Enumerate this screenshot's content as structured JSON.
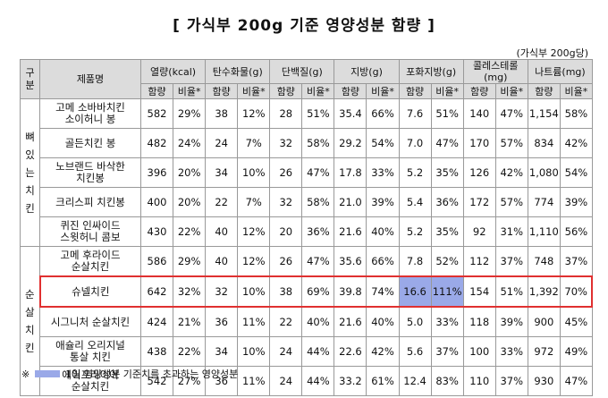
{
  "header": {
    "title": "[ 가식부 200g 기준 영양성분 함량 ]",
    "unit_note": "(가식부 200g당)"
  },
  "table": {
    "corner": "구분",
    "name_header": "제품명",
    "nutrients": [
      "열량(kcal)",
      "탄수화물(g)",
      "단백질(g)",
      "지방(g)",
      "포화지방(g)",
      "콜레스테롤(mg)",
      "나트륨(mg)"
    ],
    "sub_headers": [
      "함량",
      "비율*"
    ],
    "groups": [
      {
        "label": "뼈 있는 치킨",
        "rows": [
          {
            "name": [
              "고메 소바바치킨",
              "소이허니 봉"
            ],
            "cells": [
              "582",
              "29%",
              "38",
              "12%",
              "28",
              "51%",
              "35.4",
              "66%",
              "7.6",
              "51%",
              "140",
              "47%",
              "1,154",
              "58%"
            ]
          },
          {
            "name": [
              "골든치킨 봉"
            ],
            "cells": [
              "482",
              "24%",
              "24",
              "7%",
              "32",
              "58%",
              "29.2",
              "54%",
              "7.0",
              "47%",
              "170",
              "57%",
              "834",
              "42%"
            ]
          },
          {
            "name": [
              "노브랜드 바삭한",
              "치킨봉"
            ],
            "cells": [
              "396",
              "20%",
              "34",
              "10%",
              "26",
              "47%",
              "17.8",
              "33%",
              "5.2",
              "35%",
              "126",
              "42%",
              "1,080",
              "54%"
            ]
          },
          {
            "name": [
              "크리스피 치킨봉"
            ],
            "cells": [
              "400",
              "20%",
              "22",
              "7%",
              "32",
              "58%",
              "21.0",
              "39%",
              "5.4",
              "36%",
              "172",
              "57%",
              "774",
              "39%"
            ]
          },
          {
            "name": [
              "퀴진 인싸이드",
              "스윗허니 콤보"
            ],
            "cells": [
              "430",
              "22%",
              "40",
              "12%",
              "20",
              "36%",
              "21.6",
              "40%",
              "5.2",
              "35%",
              "92",
              "31%",
              "1,110",
              "56%"
            ]
          }
        ]
      },
      {
        "label": "순살 치킨",
        "rows": [
          {
            "name": [
              "고메 후라이드",
              "순살치킨"
            ],
            "cells": [
              "586",
              "29%",
              "40",
              "12%",
              "26",
              "47%",
              "35.6",
              "66%",
              "7.8",
              "52%",
              "112",
              "37%",
              "748",
              "37%"
            ]
          },
          {
            "name": [
              "슈넬치킨"
            ],
            "cells": [
              "642",
              "32%",
              "32",
              "10%",
              "38",
              "69%",
              "39.8",
              "74%",
              "16.6",
              "111%",
              "154",
              "51%",
              "1,392",
              "70%"
            ],
            "outlined": true,
            "exceeds": [
              8,
              9
            ]
          },
          {
            "name": [
              "시그니처 순살치킨"
            ],
            "cells": [
              "424",
              "21%",
              "36",
              "11%",
              "22",
              "40%",
              "21.6",
              "40%",
              "5.0",
              "33%",
              "118",
              "39%",
              "900",
              "45%"
            ]
          },
          {
            "name": [
              "애슐리 오리지널",
              "통살 치킨"
            ],
            "cells": [
              "438",
              "22%",
              "34",
              "10%",
              "24",
              "44%",
              "22.6",
              "42%",
              "5.6",
              "37%",
              "100",
              "33%",
              "972",
              "49%"
            ]
          },
          {
            "name": [
              "에어프라이어",
              "순살치킨"
            ],
            "cells": [
              "542",
              "27%",
              "36",
              "11%",
              "24",
              "44%",
              "33.2",
              "61%",
              "12.4",
              "83%",
              "110",
              "37%",
              "930",
              "47%"
            ]
          }
        ]
      }
    ]
  },
  "footnote": {
    "mark": "※",
    "text": "1일 영양성분 기준치를 초과하는 영양성분"
  }
}
